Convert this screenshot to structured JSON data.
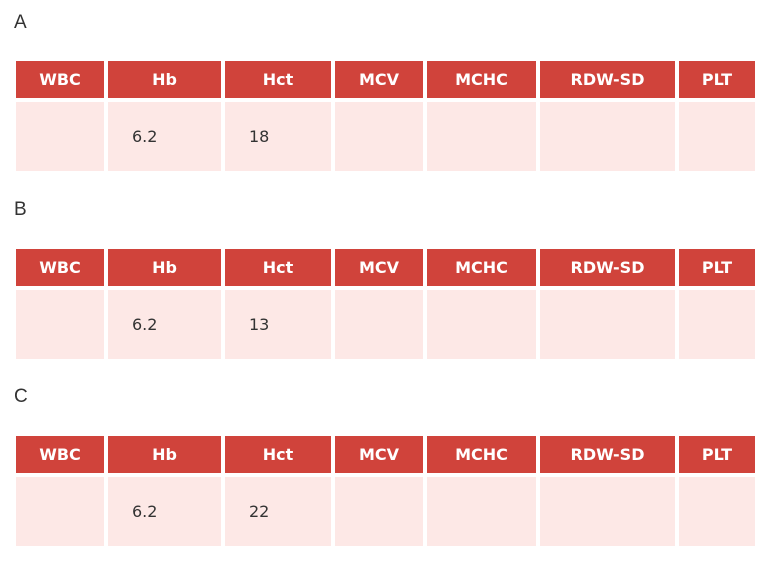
{
  "columns": [
    "WBC",
    "Hb",
    "Hct",
    "MCV",
    "MCHC",
    "RDW-SD",
    "PLT"
  ],
  "panels": [
    {
      "label": "A",
      "values": [
        "",
        "6.2",
        "18",
        "",
        "",
        "",
        ""
      ]
    },
    {
      "label": "B",
      "values": [
        "",
        "6.2",
        "13",
        "",
        "",
        "",
        ""
      ]
    },
    {
      "label": "C",
      "values": [
        "",
        "6.2",
        "22",
        "",
        "",
        "",
        ""
      ]
    }
  ],
  "colors": {
    "header_bg": "#d0433b",
    "cell_bg": "#fde8e6",
    "header_text": "#ffffff"
  }
}
